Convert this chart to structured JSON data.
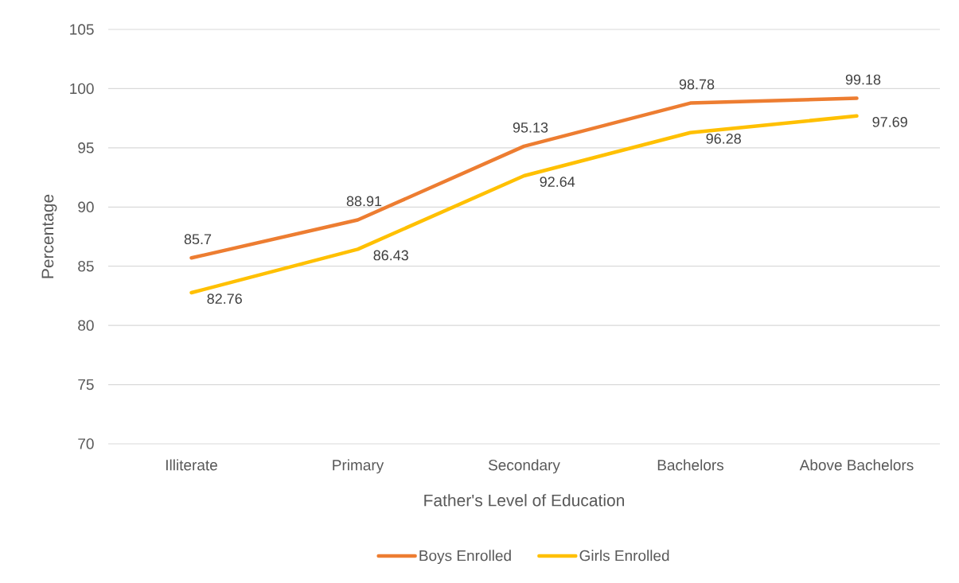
{
  "chart_data": {
    "type": "line",
    "xlabel": "Father's Level of Education",
    "ylabel": "Percentage",
    "categories": [
      "Illiterate",
      "Primary",
      "Secondary",
      "Bachelors",
      "Above Bachelors"
    ],
    "series": [
      {
        "name": "Boys Enrolled",
        "color": "#ed7d31",
        "values": [
          85.7,
          88.91,
          95.13,
          98.78,
          99.18
        ]
      },
      {
        "name": "Girls Enrolled",
        "color": "#ffc000",
        "values": [
          82.76,
          86.43,
          92.64,
          96.28,
          97.69
        ]
      }
    ],
    "ylim": [
      70,
      105
    ],
    "yticks": [
      70,
      75,
      80,
      85,
      90,
      95,
      100,
      105
    ],
    "grid": "y",
    "legend": "bottom",
    "data_labels": true,
    "marker": "none"
  }
}
